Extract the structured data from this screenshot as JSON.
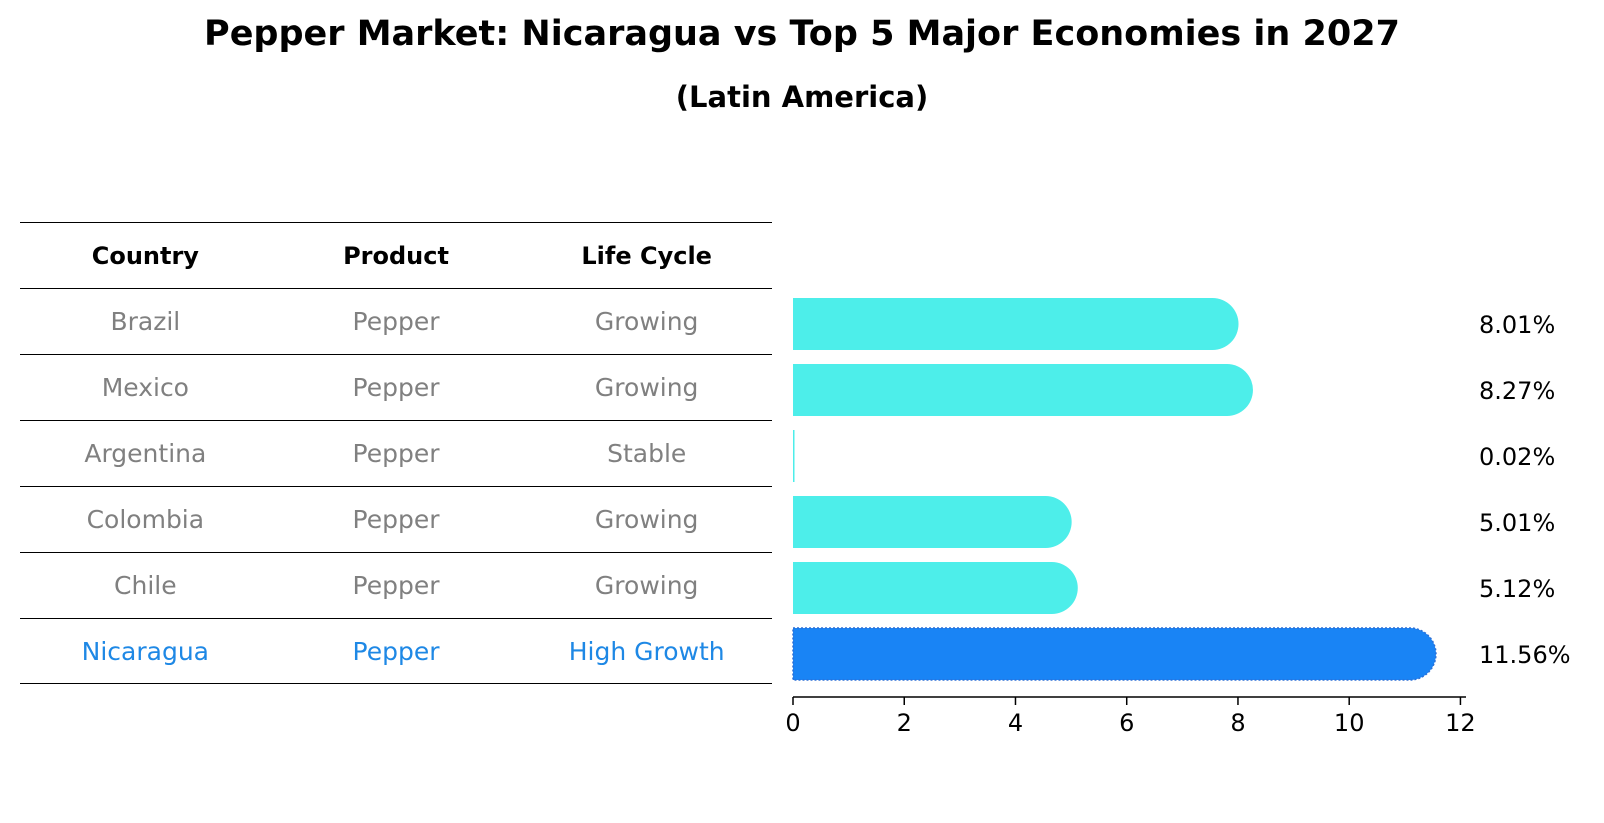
{
  "title": "Pepper Market: Nicaragua vs Top 5 Major Economies in 2027",
  "subtitle": "(Latin America)",
  "table": {
    "headers": [
      "Country",
      "Product",
      "Life Cycle"
    ],
    "rows": [
      {
        "country": "Brazil",
        "product": "Pepper",
        "life_cycle": "Growing"
      },
      {
        "country": "Mexico",
        "product": "Pepper",
        "life_cycle": "Growing"
      },
      {
        "country": "Argentina",
        "product": "Pepper",
        "life_cycle": "Stable"
      },
      {
        "country": "Colombia",
        "product": "Pepper",
        "life_cycle": "Growing"
      },
      {
        "country": "Chile",
        "product": "Pepper",
        "life_cycle": "Growing"
      },
      {
        "country": "Nicaragua",
        "product": "Pepper",
        "life_cycle": "High Growth"
      }
    ]
  },
  "colors": {
    "bar": "#4deeea",
    "highlight_bar": "#1984f5",
    "muted_text": "#808080",
    "highlight_text": "#1e88e5"
  },
  "chart_data": {
    "type": "bar",
    "orientation": "horizontal",
    "categories": [
      "Brazil",
      "Mexico",
      "Argentina",
      "Colombia",
      "Chile",
      "Nicaragua"
    ],
    "values": [
      8.01,
      8.27,
      0.02,
      5.01,
      5.12,
      11.56
    ],
    "value_labels": [
      "8.01%",
      "8.27%",
      "0.02%",
      "5.01%",
      "5.12%",
      "11.56%"
    ],
    "highlight_category": "Nicaragua",
    "xlim": [
      0,
      12.1
    ],
    "xticks": [
      0,
      2,
      4,
      6,
      8,
      10,
      12
    ],
    "xlabel": "",
    "ylabel": "",
    "grid": false
  }
}
